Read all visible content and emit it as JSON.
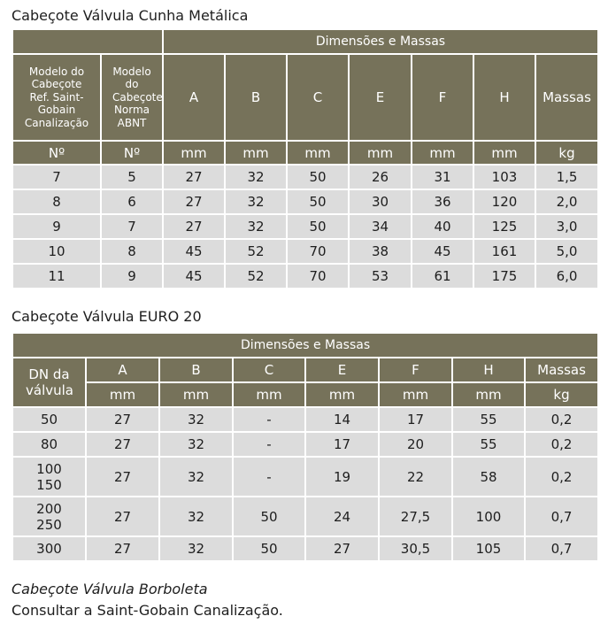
{
  "table1": {
    "title": "Cabeçote Válvula Cunha Metálica",
    "group_header": "Dimensões e Massas",
    "col1_header": "Modelo do Cabeçote Ref. Saint-Gobain Canalização",
    "col2_header": "Modelo do Cabeçote Norma ABNT",
    "dim_headers": [
      "A",
      "B",
      "C",
      "E",
      "F",
      "H",
      "Massas"
    ],
    "units": [
      "Nº",
      "Nº",
      "mm",
      "mm",
      "mm",
      "mm",
      "mm",
      "mm",
      "kg"
    ],
    "rows": [
      [
        "7",
        "5",
        "27",
        "32",
        "50",
        "26",
        "31",
        "103",
        "1,5"
      ],
      [
        "8",
        "6",
        "27",
        "32",
        "50",
        "30",
        "36",
        "120",
        "2,0"
      ],
      [
        "9",
        "7",
        "27",
        "32",
        "50",
        "34",
        "40",
        "125",
        "3,0"
      ],
      [
        "10",
        "8",
        "45",
        "52",
        "70",
        "38",
        "45",
        "161",
        "5,0"
      ],
      [
        "11",
        "9",
        "45",
        "52",
        "70",
        "53",
        "61",
        "175",
        "6,0"
      ]
    ]
  },
  "table2": {
    "title": "Cabeçote Válvula EURO 20",
    "group_header": "Dimensões e Massas",
    "col1_header": "DN da válvula",
    "dim_headers": [
      "A",
      "B",
      "C",
      "E",
      "F",
      "H",
      "Massas"
    ],
    "units": [
      "mm",
      "mm",
      "mm",
      "mm",
      "mm",
      "mm",
      "kg"
    ],
    "rows": [
      [
        "50",
        "27",
        "32",
        "-",
        "14",
        "17",
        "55",
        "0,2"
      ],
      [
        "80",
        "27",
        "32",
        "-",
        "17",
        "20",
        "55",
        "0,2"
      ],
      [
        "100\n150",
        "27",
        "32",
        "-",
        "19",
        "22",
        "58",
        "0,2"
      ],
      [
        "200\n250",
        "27",
        "32",
        "50",
        "24",
        "27,5",
        "100",
        "0,7"
      ],
      [
        "300",
        "27",
        "32",
        "50",
        "27",
        "30,5",
        "105",
        "0,7"
      ]
    ]
  },
  "footer": {
    "title": "Cabeçote Válvula Borboleta",
    "text": "Consultar a Saint-Gobain Canalização."
  }
}
